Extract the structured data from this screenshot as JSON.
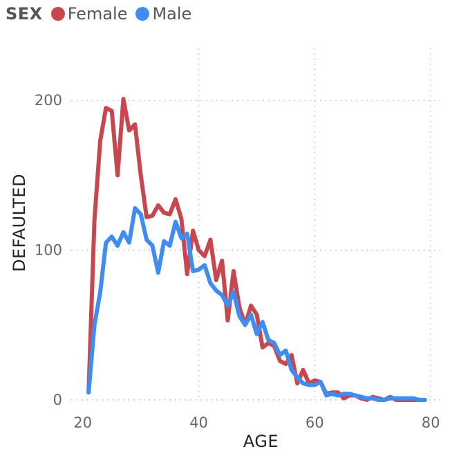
{
  "legend": {
    "title": "SEX",
    "items": [
      {
        "label": "Female",
        "color": "#C8474F"
      },
      {
        "label": "Male",
        "color": "#3F8CF3"
      }
    ]
  },
  "chart_data": {
    "type": "line",
    "xlabel": "AGE",
    "ylabel": "DEFAULTED",
    "xlim": [
      18,
      82
    ],
    "ylim": [
      0,
      244
    ],
    "xticks": [
      20,
      40,
      60,
      80
    ],
    "yticks": [
      0,
      100,
      200
    ],
    "grid": true,
    "legend_position": "top-left",
    "series": [
      {
        "name": "Female",
        "color": "#C8474F",
        "x": [
          21,
          22,
          23,
          24,
          25,
          26,
          27,
          28,
          29,
          30,
          31,
          32,
          33,
          34,
          35,
          36,
          37,
          38,
          39,
          40,
          41,
          42,
          43,
          44,
          45,
          46,
          47,
          48,
          49,
          50,
          51,
          52,
          53,
          54,
          55,
          56,
          57,
          58,
          59,
          60,
          61,
          62,
          63,
          64,
          65,
          66,
          67,
          68,
          69,
          70,
          71,
          72,
          73,
          74,
          75,
          76,
          77,
          78,
          79
        ],
        "values": [
          5,
          120,
          173,
          195,
          193,
          150,
          201,
          180,
          184,
          150,
          122,
          123,
          130,
          125,
          124,
          134,
          121,
          84,
          113,
          100,
          96,
          107,
          80,
          93,
          53,
          86,
          62,
          50,
          63,
          57,
          35,
          38,
          36,
          26,
          24,
          30,
          11,
          20,
          11,
          13,
          12,
          4,
          5,
          5,
          1,
          3,
          3,
          1,
          0,
          2,
          1,
          0,
          2,
          0,
          0,
          0,
          0,
          0,
          0
        ]
      },
      {
        "name": "Male",
        "color": "#3F8CF3",
        "x": [
          21,
          22,
          23,
          24,
          25,
          26,
          27,
          28,
          29,
          30,
          31,
          32,
          33,
          34,
          35,
          36,
          37,
          38,
          39,
          40,
          41,
          42,
          43,
          44,
          45,
          46,
          47,
          48,
          49,
          50,
          51,
          52,
          53,
          54,
          55,
          56,
          57,
          58,
          59,
          60,
          61,
          62,
          63,
          64,
          65,
          66,
          67,
          68,
          69,
          70,
          71,
          72,
          73,
          74,
          75,
          76,
          77,
          78,
          79
        ],
        "values": [
          5,
          50,
          72,
          105,
          109,
          103,
          112,
          105,
          128,
          124,
          107,
          103,
          85,
          106,
          103,
          119,
          108,
          111,
          86,
          87,
          90,
          78,
          73,
          70,
          63,
          72,
          56,
          50,
          57,
          44,
          52,
          40,
          38,
          30,
          33,
          20,
          15,
          11,
          10,
          10,
          12,
          3,
          4,
          3,
          4,
          4,
          3,
          2,
          1,
          1,
          0,
          0,
          1,
          1,
          1,
          1,
          1,
          0,
          0
        ]
      }
    ]
  }
}
